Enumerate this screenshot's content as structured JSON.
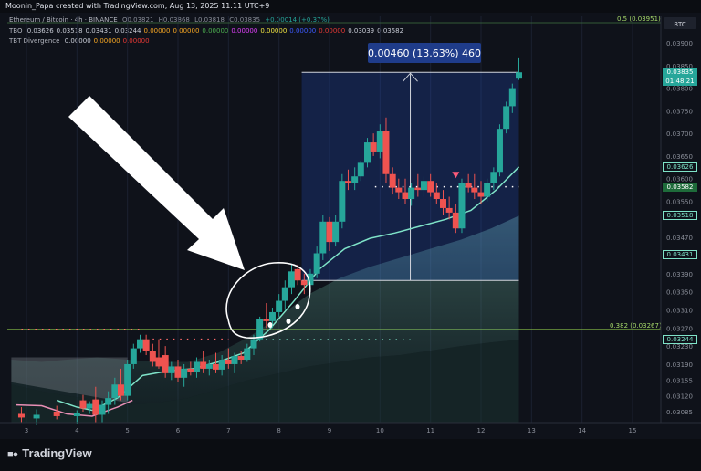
{
  "header": {
    "attribution": "Moonin_Papa created with TradingView.com, Aug 13, 2025 11:11 UTC+9"
  },
  "legend": {
    "symbol": "Ethereum / Bitcoin · 4h · BINANCE",
    "ohlc": [
      "O0.03821",
      "H0.03868",
      "L0.03818",
      "C0.03835",
      "+0.00014 (+0.37%)"
    ],
    "tbo": {
      "name": "TBO",
      "values": [
        "0.03626",
        "0.03518",
        "0.03431",
        "0.03244",
        "0.00000",
        "0.00000",
        "0.00000",
        "0.00000",
        "0.00000",
        "0.00000",
        "0.00000",
        "0.03039",
        "0.03582"
      ]
    },
    "tbt": {
      "name": "TBT Divergence",
      "values": [
        "0.00000",
        "0.00000",
        "0.00000"
      ]
    },
    "colors": [
      "#c8ccd6",
      "#c8ccd6",
      "#c8ccd6",
      "#c8ccd6",
      "#f5a623",
      "#f5a623",
      "#4caf50",
      "#e040fb",
      "#f0e442",
      "#3d5afe",
      "#e53935",
      "#c8ccd6",
      "#c8ccd6"
    ]
  },
  "currency_badge": "BTC",
  "measure_label": "0.00460 (13.63%) 460",
  "price_boxes": [
    {
      "label": "0.03835",
      "sub": "01:48:21",
      "price": 0.03835,
      "bg": "#26a69a",
      "fg": "#ffffff"
    },
    {
      "label": "0.03626",
      "price": 0.03626,
      "bg": "#0f121a",
      "fg": "#7fe3c8",
      "border": "#7fe3c8"
    },
    {
      "label": "0.03582",
      "price": 0.03582,
      "bg": "#1e6b3a",
      "fg": "#ffffff"
    },
    {
      "label": "0.03518",
      "price": 0.03518,
      "bg": "#0f121a",
      "fg": "#7fe3c8",
      "border": "#7fe3c8"
    },
    {
      "label": "0.03431",
      "price": 0.03431,
      "bg": "#0f121a",
      "fg": "#7fe3c8",
      "border": "#7fe3c8"
    },
    {
      "label": "0.03244",
      "price": 0.03244,
      "bg": "#0f121a",
      "fg": "#7fe3c8",
      "border": "#7fe3c8"
    }
  ],
  "fib_levels": [
    {
      "label": "0.5 (0.03951)",
      "price": 0.03951
    },
    {
      "label": "0.382 (0.03267)",
      "price": 0.03267
    }
  ],
  "brand": "TradingView",
  "chart_data": {
    "type": "candlestick",
    "x_ticks": [
      "3",
      "4",
      "5",
      "6",
      "7",
      "8",
      "9",
      "10",
      "11",
      "12",
      "13",
      "14",
      "15"
    ],
    "y_ticks": [
      "0.03900",
      "0.03850",
      "0.03800",
      "0.03750",
      "0.03700",
      "0.03650",
      "0.03600",
      "0.03550",
      "0.03470",
      "0.03390",
      "0.03350",
      "0.03310",
      "0.03270",
      "0.03230",
      "0.03190",
      "0.03155",
      "0.03120",
      "0.03085"
    ],
    "y_tick_values": [
      0.039,
      0.0385,
      0.038,
      0.0375,
      0.037,
      0.0365,
      0.036,
      0.0355,
      0.0347,
      0.0339,
      0.0335,
      0.0331,
      0.0327,
      0.0323,
      0.0319,
      0.03155,
      0.0312,
      0.03085
    ],
    "candles": [
      {
        "x": 2.9,
        "o": 0.0308,
        "h": 0.03095,
        "l": 0.03062,
        "c": 0.03072
      },
      {
        "x": 3.2,
        "o": 0.0307,
        "h": 0.0309,
        "l": 0.03055,
        "c": 0.03078
      },
      {
        "x": 3.6,
        "o": 0.03085,
        "h": 0.03098,
        "l": 0.03068,
        "c": 0.03075
      },
      {
        "x": 4.0,
        "o": 0.03075,
        "h": 0.03088,
        "l": 0.03058,
        "c": 0.03082
      },
      {
        "x": 4.12,
        "o": 0.0311,
        "h": 0.03122,
        "l": 0.03085,
        "c": 0.03092
      },
      {
        "x": 4.25,
        "o": 0.03092,
        "h": 0.03108,
        "l": 0.0308,
        "c": 0.03102
      },
      {
        "x": 4.37,
        "o": 0.03112,
        "h": 0.0314,
        "l": 0.0306,
        "c": 0.03078
      },
      {
        "x": 4.5,
        "o": 0.03078,
        "h": 0.0311,
        "l": 0.0306,
        "c": 0.031
      },
      {
        "x": 4.62,
        "o": 0.031,
        "h": 0.0313,
        "l": 0.0308,
        "c": 0.03115
      },
      {
        "x": 4.75,
        "o": 0.03115,
        "h": 0.0316,
        "l": 0.031,
        "c": 0.03145
      },
      {
        "x": 4.87,
        "o": 0.03145,
        "h": 0.0318,
        "l": 0.0311,
        "c": 0.0312
      },
      {
        "x": 5.0,
        "o": 0.0312,
        "h": 0.032,
        "l": 0.0311,
        "c": 0.0319
      },
      {
        "x": 5.12,
        "o": 0.0319,
        "h": 0.03235,
        "l": 0.0318,
        "c": 0.03225
      },
      {
        "x": 5.25,
        "o": 0.03225,
        "h": 0.03255,
        "l": 0.03215,
        "c": 0.03245
      },
      {
        "x": 5.37,
        "o": 0.03245,
        "h": 0.03255,
        "l": 0.0321,
        "c": 0.0322
      },
      {
        "x": 5.5,
        "o": 0.0322,
        "h": 0.03235,
        "l": 0.03185,
        "c": 0.03195
      },
      {
        "x": 5.62,
        "o": 0.03205,
        "h": 0.03245,
        "l": 0.0318,
        "c": 0.03185
      },
      {
        "x": 5.75,
        "o": 0.0321,
        "h": 0.0323,
        "l": 0.0316,
        "c": 0.0317
      },
      {
        "x": 5.87,
        "o": 0.0317,
        "h": 0.03195,
        "l": 0.03155,
        "c": 0.03185
      },
      {
        "x": 6.0,
        "o": 0.03185,
        "h": 0.032,
        "l": 0.0315,
        "c": 0.0316
      },
      {
        "x": 6.12,
        "o": 0.0316,
        "h": 0.0319,
        "l": 0.0314,
        "c": 0.0318
      },
      {
        "x": 6.25,
        "o": 0.0318,
        "h": 0.03195,
        "l": 0.03165,
        "c": 0.03172
      },
      {
        "x": 6.37,
        "o": 0.03172,
        "h": 0.03205,
        "l": 0.0316,
        "c": 0.03195
      },
      {
        "x": 6.5,
        "o": 0.03195,
        "h": 0.0322,
        "l": 0.0317,
        "c": 0.0318
      },
      {
        "x": 6.62,
        "o": 0.0318,
        "h": 0.032,
        "l": 0.03165,
        "c": 0.0319
      },
      {
        "x": 6.75,
        "o": 0.0319,
        "h": 0.03215,
        "l": 0.0317,
        "c": 0.03178
      },
      {
        "x": 6.87,
        "o": 0.03178,
        "h": 0.0321,
        "l": 0.03165,
        "c": 0.032
      },
      {
        "x": 7.0,
        "o": 0.032,
        "h": 0.03225,
        "l": 0.0318,
        "c": 0.0319
      },
      {
        "x": 7.12,
        "o": 0.0319,
        "h": 0.03215,
        "l": 0.0317,
        "c": 0.03208
      },
      {
        "x": 7.25,
        "o": 0.03208,
        "h": 0.0322,
        "l": 0.0319,
        "c": 0.032
      },
      {
        "x": 7.37,
        "o": 0.032,
        "h": 0.03235,
        "l": 0.03195,
        "c": 0.03225
      },
      {
        "x": 7.5,
        "o": 0.03225,
        "h": 0.03255,
        "l": 0.0321,
        "c": 0.03245
      },
      {
        "x": 7.62,
        "o": 0.03245,
        "h": 0.03295,
        "l": 0.0324,
        "c": 0.0329
      },
      {
        "x": 7.75,
        "o": 0.0329,
        "h": 0.03325,
        "l": 0.0327,
        "c": 0.03285
      },
      {
        "x": 7.87,
        "o": 0.03285,
        "h": 0.03315,
        "l": 0.0327,
        "c": 0.03305
      },
      {
        "x": 8.0,
        "o": 0.03305,
        "h": 0.03345,
        "l": 0.03295,
        "c": 0.0333
      },
      {
        "x": 8.12,
        "o": 0.0333,
        "h": 0.03375,
        "l": 0.0331,
        "c": 0.0336
      },
      {
        "x": 8.25,
        "o": 0.0336,
        "h": 0.0341,
        "l": 0.03345,
        "c": 0.03395
      },
      {
        "x": 8.37,
        "o": 0.034,
        "h": 0.0341,
        "l": 0.03365,
        "c": 0.03375
      },
      {
        "x": 8.5,
        "o": 0.03375,
        "h": 0.0339,
        "l": 0.03345,
        "c": 0.03365
      },
      {
        "x": 8.62,
        "o": 0.03365,
        "h": 0.034,
        "l": 0.0335,
        "c": 0.0339
      },
      {
        "x": 8.75,
        "o": 0.0339,
        "h": 0.0345,
        "l": 0.0338,
        "c": 0.03435
      },
      {
        "x": 8.87,
        "o": 0.03435,
        "h": 0.0352,
        "l": 0.0342,
        "c": 0.03505
      },
      {
        "x": 9.0,
        "o": 0.03505,
        "h": 0.03515,
        "l": 0.0344,
        "c": 0.0346
      },
      {
        "x": 9.12,
        "o": 0.0346,
        "h": 0.0352,
        "l": 0.0345,
        "c": 0.03505
      },
      {
        "x": 9.25,
        "o": 0.03505,
        "h": 0.0361,
        "l": 0.0349,
        "c": 0.03595
      },
      {
        "x": 9.37,
        "o": 0.03595,
        "h": 0.0362,
        "l": 0.03575,
        "c": 0.0359
      },
      {
        "x": 9.5,
        "o": 0.0359,
        "h": 0.03625,
        "l": 0.03575,
        "c": 0.03605
      },
      {
        "x": 9.62,
        "o": 0.03605,
        "h": 0.0364,
        "l": 0.03595,
        "c": 0.03635
      },
      {
        "x": 9.75,
        "o": 0.03635,
        "h": 0.0369,
        "l": 0.03625,
        "c": 0.0368
      },
      {
        "x": 9.87,
        "o": 0.0368,
        "h": 0.037,
        "l": 0.0365,
        "c": 0.0366
      },
      {
        "x": 10.0,
        "o": 0.0366,
        "h": 0.0372,
        "l": 0.03645,
        "c": 0.03705
      },
      {
        "x": 10.12,
        "o": 0.03705,
        "h": 0.03735,
        "l": 0.0359,
        "c": 0.0361
      },
      {
        "x": 10.25,
        "o": 0.0361,
        "h": 0.03625,
        "l": 0.03565,
        "c": 0.0358
      },
      {
        "x": 10.37,
        "o": 0.0358,
        "h": 0.036,
        "l": 0.03555,
        "c": 0.0357
      },
      {
        "x": 10.5,
        "o": 0.0357,
        "h": 0.036,
        "l": 0.03545,
        "c": 0.03555
      },
      {
        "x": 10.62,
        "o": 0.03555,
        "h": 0.0359,
        "l": 0.0354,
        "c": 0.0358
      },
      {
        "x": 10.75,
        "o": 0.0358,
        "h": 0.0361,
        "l": 0.0356,
        "c": 0.03575
      },
      {
        "x": 10.87,
        "o": 0.03575,
        "h": 0.03605,
        "l": 0.0356,
        "c": 0.03595
      },
      {
        "x": 11.0,
        "o": 0.03595,
        "h": 0.0361,
        "l": 0.0356,
        "c": 0.0357
      },
      {
        "x": 11.12,
        "o": 0.0357,
        "h": 0.0359,
        "l": 0.03545,
        "c": 0.03555
      },
      {
        "x": 11.25,
        "o": 0.03555,
        "h": 0.03575,
        "l": 0.0352,
        "c": 0.03535
      },
      {
        "x": 11.37,
        "o": 0.03535,
        "h": 0.0356,
        "l": 0.0351,
        "c": 0.03525
      },
      {
        "x": 11.5,
        "o": 0.03525,
        "h": 0.03545,
        "l": 0.0348,
        "c": 0.0349
      },
      {
        "x": 11.62,
        "o": 0.0349,
        "h": 0.036,
        "l": 0.0348,
        "c": 0.0359
      },
      {
        "x": 11.75,
        "o": 0.0359,
        "h": 0.0361,
        "l": 0.0357,
        "c": 0.0358
      },
      {
        "x": 11.87,
        "o": 0.0358,
        "h": 0.0361,
        "l": 0.03555,
        "c": 0.0357
      },
      {
        "x": 12.0,
        "o": 0.0357,
        "h": 0.03595,
        "l": 0.03545,
        "c": 0.0356
      },
      {
        "x": 12.12,
        "o": 0.0356,
        "h": 0.036,
        "l": 0.0355,
        "c": 0.0359
      },
      {
        "x": 12.25,
        "o": 0.0359,
        "h": 0.03625,
        "l": 0.03575,
        "c": 0.03615
      },
      {
        "x": 12.37,
        "o": 0.03615,
        "h": 0.0372,
        "l": 0.03605,
        "c": 0.0371
      },
      {
        "x": 12.5,
        "o": 0.0371,
        "h": 0.0377,
        "l": 0.037,
        "c": 0.0376
      },
      {
        "x": 12.62,
        "o": 0.0376,
        "h": 0.0381,
        "l": 0.03745,
        "c": 0.038
      },
      {
        "x": 12.75,
        "o": 0.03821,
        "h": 0.03868,
        "l": 0.03818,
        "c": 0.03835
      }
    ],
    "ma_fast": [
      [
        3.6,
        0.0311
      ],
      [
        4.0,
        0.03095
      ],
      [
        4.3,
        0.03088
      ],
      [
        4.8,
        0.03115
      ],
      [
        5.3,
        0.03165
      ],
      [
        5.8,
        0.03175
      ],
      [
        6.3,
        0.0318
      ],
      [
        6.8,
        0.03195
      ],
      [
        7.3,
        0.03215
      ],
      [
        7.8,
        0.03265
      ],
      [
        8.3,
        0.0333
      ],
      [
        8.8,
        0.034
      ],
      [
        9.3,
        0.03445
      ],
      [
        9.8,
        0.03468
      ],
      [
        10.3,
        0.0348
      ],
      [
        10.8,
        0.03495
      ],
      [
        11.3,
        0.0351
      ],
      [
        11.8,
        0.0353
      ],
      [
        12.3,
        0.03575
      ],
      [
        12.75,
        0.03626
      ]
    ],
    "cloud_upper": [
      [
        2.7,
        0.032
      ],
      [
        3.3,
        0.03195
      ],
      [
        3.8,
        0.032
      ],
      [
        4.4,
        0.03205
      ],
      [
        5.0,
        0.032
      ],
      [
        5.6,
        0.03195
      ],
      [
        6.2,
        0.03195
      ],
      [
        6.8,
        0.03215
      ],
      [
        7.4,
        0.0325
      ],
      [
        8.0,
        0.03295
      ],
      [
        8.6,
        0.03345
      ],
      [
        9.2,
        0.0338
      ],
      [
        9.8,
        0.03405
      ],
      [
        10.4,
        0.03425
      ],
      [
        11.0,
        0.03445
      ],
      [
        11.6,
        0.03465
      ],
      [
        12.2,
        0.0349
      ],
      [
        12.75,
        0.03518
      ]
    ],
    "cloud_lower": [
      [
        2.7,
        0.03145
      ],
      [
        3.3,
        0.0313
      ],
      [
        3.8,
        0.0312
      ],
      [
        4.4,
        0.0311
      ],
      [
        5.0,
        0.031
      ],
      [
        5.6,
        0.03105
      ],
      [
        6.2,
        0.03115
      ],
      [
        6.8,
        0.03135
      ],
      [
        7.4,
        0.03155
      ],
      [
        8.0,
        0.0317
      ],
      [
        8.6,
        0.03185
      ],
      [
        9.2,
        0.03195
      ],
      [
        9.8,
        0.03205
      ],
      [
        10.4,
        0.0321
      ],
      [
        11.0,
        0.0322
      ],
      [
        11.6,
        0.0323
      ],
      [
        12.2,
        0.03238
      ],
      [
        12.75,
        0.03244
      ]
    ],
    "measure": {
      "x_start": 8.45,
      "x_end": 12.75,
      "y_low": 0.03375,
      "y_high": 0.03835
    },
    "dotted_levels": [
      {
        "price": 0.03582,
        "x_start": 9.9,
        "x_end": 12.75,
        "color": "#ffffff"
      },
      {
        "price": 0.03244,
        "x_start": 7.6,
        "x_end": 10.6,
        "color": "#7fe3c8"
      },
      {
        "price": 0.03267,
        "x_start": 2.9,
        "x_end": 5.3,
        "color": "#ff6b6b"
      },
      {
        "price": 0.03245,
        "x_start": 5.5,
        "x_end": 7.0,
        "color": "#ff6b6b"
      }
    ],
    "signal_marker": {
      "x": 11.5,
      "price": 0.03595
    }
  }
}
